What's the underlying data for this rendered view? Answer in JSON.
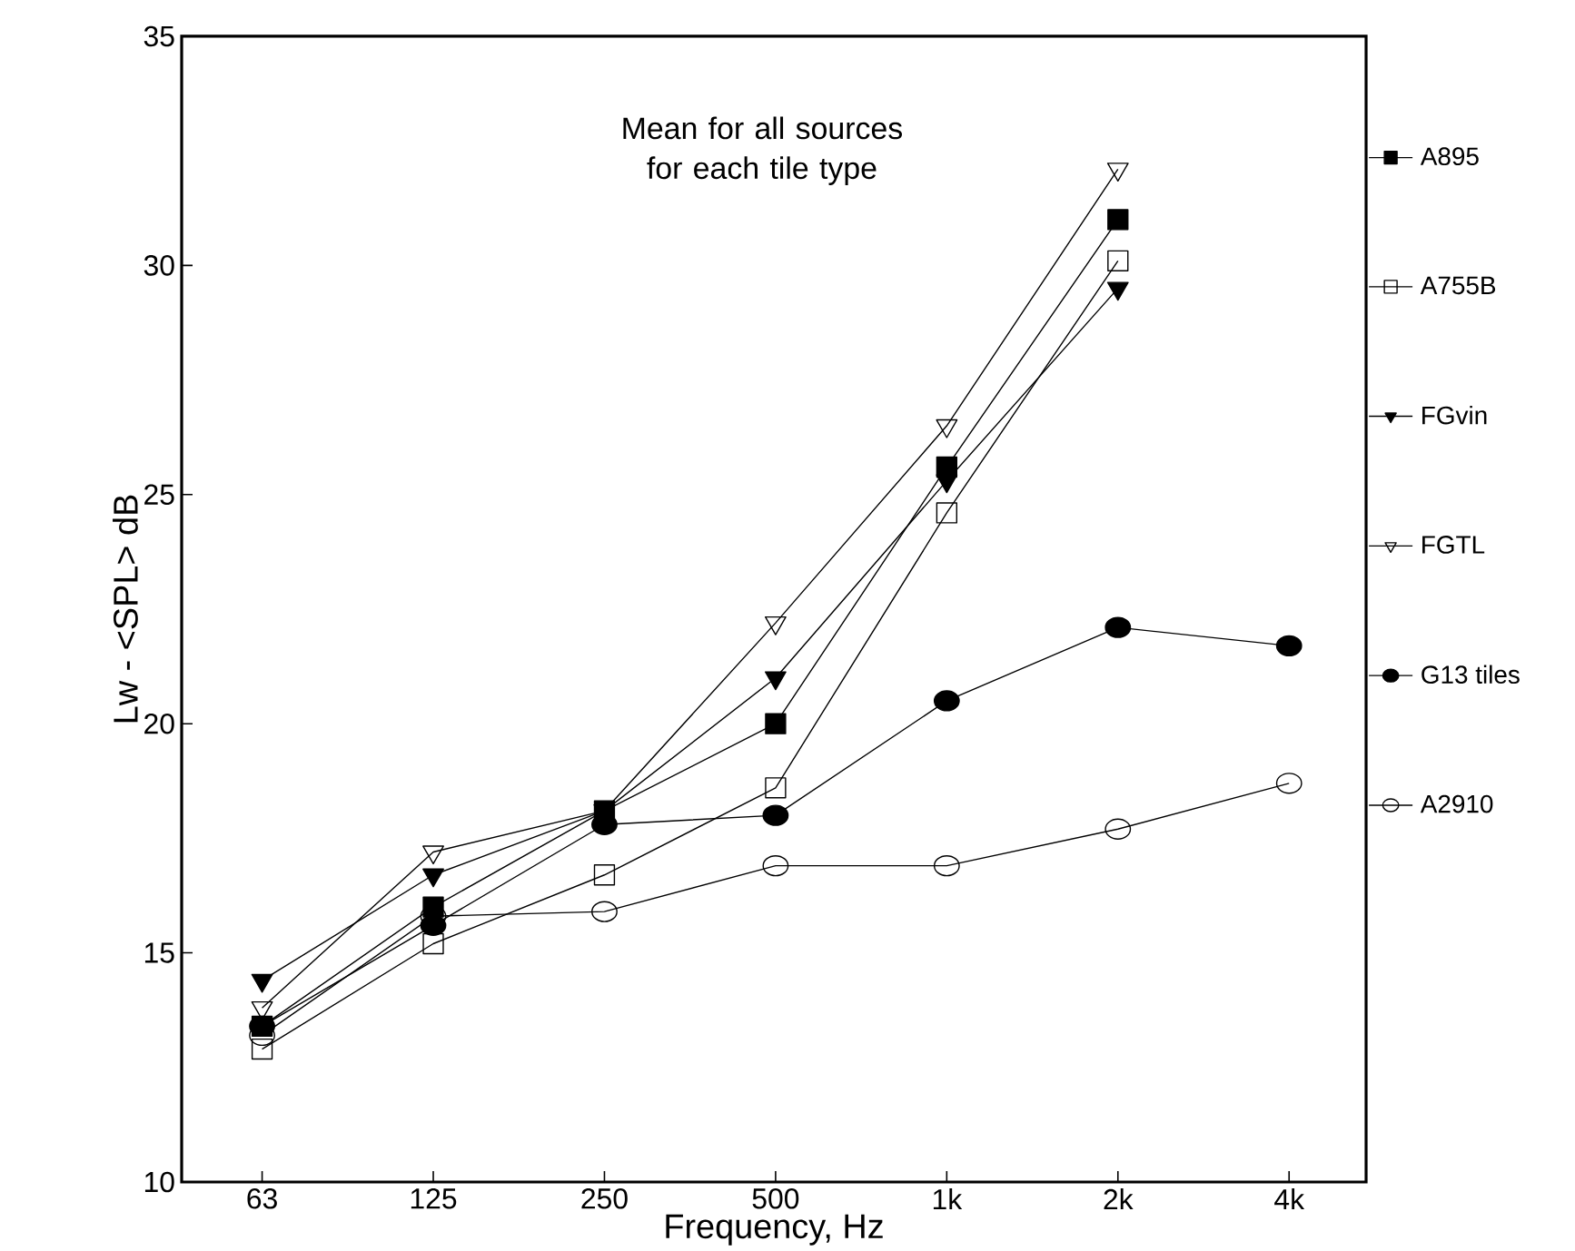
{
  "chart_data": {
    "type": "line",
    "xlabel": "Frequency, Hz",
    "ylabel": "Lw - <SPL> dB",
    "categories": [
      "63",
      "125",
      "250",
      "500",
      "1k",
      "2k",
      "4k"
    ],
    "ylim": [
      10,
      35
    ],
    "yticks": [
      10,
      15,
      20,
      25,
      30,
      35
    ],
    "legend": "right",
    "grid": false,
    "annotations": [
      "Mean for all sources for each tile type"
    ],
    "series": [
      {
        "name": "A895",
        "color": "#000000",
        "marker": "square_filled",
        "values": [
          13.4,
          16.0,
          18.1,
          20.0,
          25.6,
          31.0,
          null
        ]
      },
      {
        "name": "A755B",
        "color": "#000000",
        "marker": "square",
        "values": [
          12.9,
          15.2,
          16.7,
          18.6,
          24.6,
          30.1,
          null
        ]
      },
      {
        "name": "FGvin",
        "color": "#000000",
        "marker": "triangle_down_filled",
        "values": [
          14.4,
          16.7,
          18.1,
          21.0,
          25.3,
          29.5,
          null
        ]
      },
      {
        "name": "FGTL",
        "color": "#000000",
        "marker": "triangle_down",
        "values": [
          13.8,
          17.2,
          18.1,
          22.2,
          26.5,
          32.1,
          null
        ]
      },
      {
        "name": "G13 tiles",
        "color": "#000000",
        "marker": "circle_filled",
        "values": [
          13.4,
          15.6,
          17.8,
          18.0,
          20.5,
          22.1,
          21.7
        ]
      },
      {
        "name": "A2910",
        "color": "#000000",
        "marker": "circle",
        "values": [
          13.2,
          15.8,
          15.9,
          16.9,
          16.9,
          17.7,
          18.7
        ]
      }
    ]
  }
}
